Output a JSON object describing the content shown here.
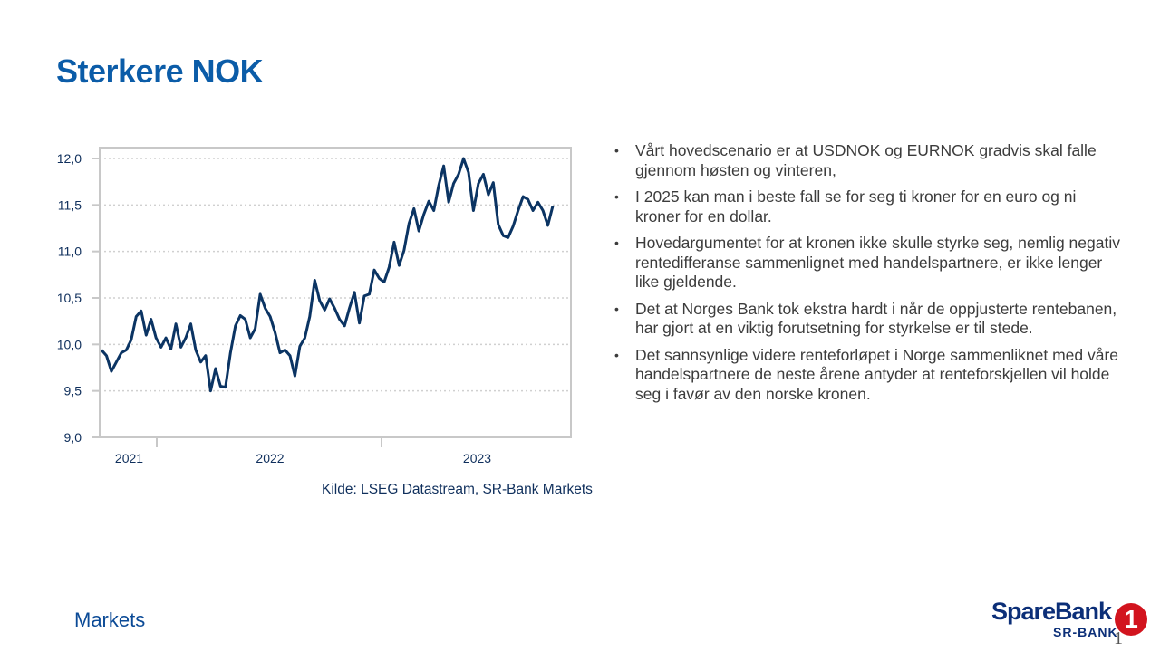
{
  "title": "Sterkere NOK",
  "bullets": [
    "Vårt hovedscenario er at USDNOK og EURNOK gradvis skal falle gjennom høsten og vinteren,",
    "I 2025 kan man i beste fall se for seg ti kroner for en euro og ni kroner for en dollar.",
    "Hovedargumentet for at kronen ikke skulle styrke seg, nemlig negativ rentedifferanse sammenlignet med handelspartnere, er ikke lenger like gjeldende.",
    "Det at Norges Bank tok ekstra hardt i når de oppjusterte rentebanen, har gjort at en viktig forutsetning for styrkelse er til stede.",
    "Det sannsynlige videre renteforløpet i Norge sammenliknet med våre handelspartnere de neste årene antyder at renteforskjellen vil holde seg i favør av den norske kronen."
  ],
  "bullet_glyph": "•",
  "source": "Kilde: LSEG Datastream, SR-Bank Markets",
  "footer": "Markets",
  "logo": {
    "brand": "SpareBank",
    "sub": "SR-BANK",
    "digit": "1"
  },
  "page_number": "1",
  "colors": {
    "title": "#0b5ca8",
    "line": "#0b3463",
    "grid": "#d0d0d0",
    "frame": "#c8c8c8",
    "logo_red": "#d2141e"
  },
  "chart_data": {
    "type": "line",
    "title": "",
    "xlabel": "",
    "ylabel": "",
    "ylim": [
      9.0,
      12.0
    ],
    "yticks": [
      9.0,
      9.5,
      10.0,
      10.5,
      11.0,
      11.5,
      12.0
    ],
    "ytick_labels": [
      "9,0",
      "9,5",
      "10,0",
      "10,5",
      "11,0",
      "11,5",
      "12,0"
    ],
    "xtick_labels": [
      "2021",
      "2022",
      "2023"
    ],
    "grid": true,
    "legend": "none",
    "series": [
      {
        "values": [
          9.94,
          9.88,
          9.71,
          9.81,
          9.91,
          9.94,
          10.05,
          10.3,
          10.36,
          10.1,
          10.27,
          10.07,
          9.97,
          10.07,
          9.95,
          10.22,
          9.97,
          10.07,
          10.22,
          9.94,
          9.81,
          9.88,
          9.5,
          9.74,
          9.55,
          9.54,
          9.91,
          10.2,
          10.31,
          10.27,
          10.07,
          10.17,
          10.54,
          10.39,
          10.3,
          10.13,
          9.91,
          9.94,
          9.88,
          9.66,
          9.98,
          10.07,
          10.3,
          10.69,
          10.47,
          10.37,
          10.49,
          10.39,
          10.27,
          10.2,
          10.39,
          10.56,
          10.23,
          10.52,
          10.54,
          10.8,
          10.71,
          10.67,
          10.83,
          11.1,
          10.85,
          11.01,
          11.3,
          11.46,
          11.22,
          11.4,
          11.54,
          11.44,
          11.71,
          11.92,
          11.53,
          11.73,
          11.83,
          12.0,
          11.85,
          11.44,
          11.73,
          11.83,
          11.61,
          11.74,
          11.29,
          11.17,
          11.15,
          11.27,
          11.44,
          11.59,
          11.56,
          11.44,
          11.53,
          11.44,
          11.28,
          11.49
        ]
      }
    ]
  }
}
